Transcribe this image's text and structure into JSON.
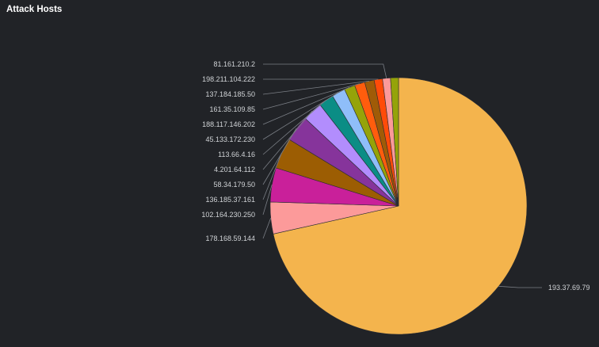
{
  "panel": {
    "title": "Attack Hosts"
  },
  "chart_data": {
    "type": "pie",
    "title": "Attack Hosts",
    "slices": [
      {
        "label": "193.37.69.79",
        "value": 71.5,
        "color": "#f4b44d"
      },
      {
        "label": "178.168.59.144",
        "value": 4.0,
        "color": "#fc9a9a"
      },
      {
        "label": "102.164.230.250",
        "value": 4.3,
        "color": "#c9209a"
      },
      {
        "label": "136.185.37.161",
        "value": 3.9,
        "color": "#9c5d03"
      },
      {
        "label": "58.34.179.50",
        "value": 3.3,
        "color": "#86349b"
      },
      {
        "label": "4.201.64.112",
        "value": 2.5,
        "color": "#b28dfd"
      },
      {
        "label": "113.66.4.16",
        "value": 1.9,
        "color": "#0b8d85"
      },
      {
        "label": "45.133.172.230",
        "value": 1.7,
        "color": "#8fbef9"
      },
      {
        "label": "188.117.146.202",
        "value": 1.35,
        "color": "#95a309"
      },
      {
        "label": "161.35.109.85",
        "value": 1.3,
        "color": "#ff5d0d"
      },
      {
        "label": "137.184.185.50",
        "value": 1.2,
        "color": "#a05b07"
      },
      {
        "label": "198.211.104.222",
        "value": 1.05,
        "color": "#ff4b09"
      },
      {
        "label": "81.161.210.2",
        "value": 1.0,
        "color": "#fc9a9a"
      },
      {
        "label": "",
        "value": 1.0,
        "color": "#95a309"
      }
    ],
    "legend": "none"
  }
}
